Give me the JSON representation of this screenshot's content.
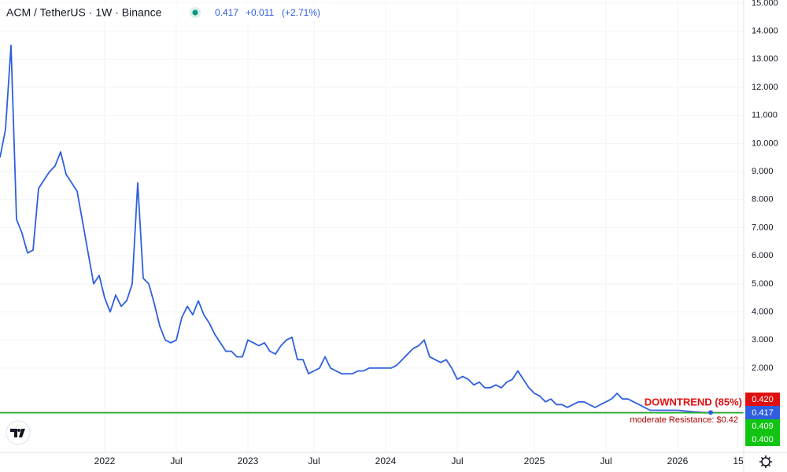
{
  "header": {
    "symbol": "ACM / TetherUS · 1W · Binance",
    "price": "0.417",
    "change": "+0.011",
    "change_pct": "(+2.71%)"
  },
  "chart_data": {
    "type": "line",
    "categories": [
      null,
      null,
      null,
      null,
      null,
      null,
      null,
      null,
      null,
      null,
      null,
      null,
      null,
      null,
      null,
      null,
      null,
      null,
      null,
      "2022",
      null,
      null,
      null,
      null,
      null,
      null,
      null,
      null,
      null,
      null,
      null,
      null,
      "Jul",
      null,
      null,
      null,
      null,
      null,
      null,
      null,
      null,
      null,
      null,
      null,
      null,
      "2023",
      null,
      null,
      null,
      null,
      null,
      null,
      null,
      null,
      null,
      null,
      null,
      "Jul",
      null,
      null,
      null,
      null,
      null,
      null,
      null,
      null,
      null,
      null,
      null,
      null,
      "2024",
      null,
      null,
      null,
      null,
      null,
      null,
      null,
      null,
      null,
      null,
      null,
      null,
      "Jul",
      null,
      null,
      null,
      null,
      null,
      null,
      null,
      null,
      null,
      null,
      null,
      null,
      null,
      "2025",
      null,
      null,
      null,
      null,
      null,
      null,
      null,
      null,
      null,
      null,
      null,
      null,
      "Jul",
      null,
      null,
      null,
      null,
      null,
      null,
      null,
      null,
      null,
      null,
      null,
      null,
      "2026",
      null,
      null,
      null,
      null,
      null,
      null,
      null,
      null,
      null,
      null,
      "15",
      null
    ],
    "series": [
      {
        "name": "ACM / TetherUS",
        "color": "#2f5fe0",
        "values": [
          9.5,
          10.5,
          13.5,
          7.3,
          6.8,
          6.1,
          6.2,
          8.4,
          8.7,
          9.0,
          9.2,
          9.7,
          8.9,
          8.6,
          8.3,
          7.2,
          6.1,
          5.0,
          5.3,
          4.5,
          4.0,
          4.6,
          4.2,
          4.4,
          5.0,
          8.6,
          5.2,
          5.0,
          4.3,
          3.5,
          3.0,
          2.9,
          3.0,
          3.8,
          4.2,
          3.9,
          4.4,
          3.9,
          3.6,
          3.2,
          2.9,
          2.6,
          2.6,
          2.4,
          2.4,
          3.0,
          2.9,
          2.8,
          2.9,
          2.6,
          2.5,
          2.8,
          3.0,
          3.1,
          2.3,
          2.3,
          1.8,
          1.9,
          2.0,
          2.4,
          2.0,
          1.9,
          1.8,
          1.8,
          1.8,
          1.9,
          1.9,
          2.0,
          2.0,
          2.0,
          2.0,
          2.0,
          2.1,
          2.3,
          2.5,
          2.7,
          2.8,
          3.0,
          2.4,
          2.3,
          2.2,
          2.3,
          2.0,
          1.6,
          1.7,
          1.6,
          1.4,
          1.5,
          1.3,
          1.3,
          1.4,
          1.3,
          1.5,
          1.6,
          1.9,
          1.6,
          1.3,
          1.1,
          1.0,
          0.8,
          0.9,
          0.7,
          0.7,
          0.6,
          0.7,
          0.8,
          0.8,
          0.7,
          0.6,
          0.7,
          0.8,
          0.9,
          1.1,
          0.9,
          0.9,
          0.8,
          0.7,
          0.6,
          0.5,
          0.5,
          0.5,
          0.5,
          0.5,
          0.5,
          0.48,
          0.46,
          0.44,
          0.43,
          0.41,
          0.417,
          null,
          null,
          null,
          null,
          null,
          null
        ]
      }
    ],
    "ylim": [
      -1.0,
      15.11
    ],
    "yticks": [
      {
        "value": 2,
        "label": "2.000"
      },
      {
        "value": 3,
        "label": "3.000"
      },
      {
        "value": 4,
        "label": "4.000"
      },
      {
        "value": 5,
        "label": "5.000"
      },
      {
        "value": 6,
        "label": "6.000"
      },
      {
        "value": 7,
        "label": "7.000"
      },
      {
        "value": 8,
        "label": "8.000"
      },
      {
        "value": 9,
        "label": "9.000"
      },
      {
        "value": 10,
        "label": "10.000"
      },
      {
        "value": 11,
        "label": "11.000"
      },
      {
        "value": 12,
        "label": "12.000"
      },
      {
        "value": 13,
        "label": "13.000"
      },
      {
        "value": 14,
        "label": "14.000"
      },
      {
        "value": 15,
        "label": "15.000"
      }
    ],
    "grid": true,
    "levels": [
      {
        "value": 0.42,
        "label": "0.420",
        "color": "#e01010"
      },
      {
        "value": 0.417,
        "label": "0.417",
        "color": "#2f5fe0"
      },
      {
        "value": 0.409,
        "label": "0.409",
        "color": "#11c411"
      },
      {
        "value": 0.4,
        "label": "0.400",
        "color": "#11c411"
      }
    ],
    "annotations": [
      "DOWNTREND (85%)",
      "moderate Resistance: $0.42"
    ]
  }
}
